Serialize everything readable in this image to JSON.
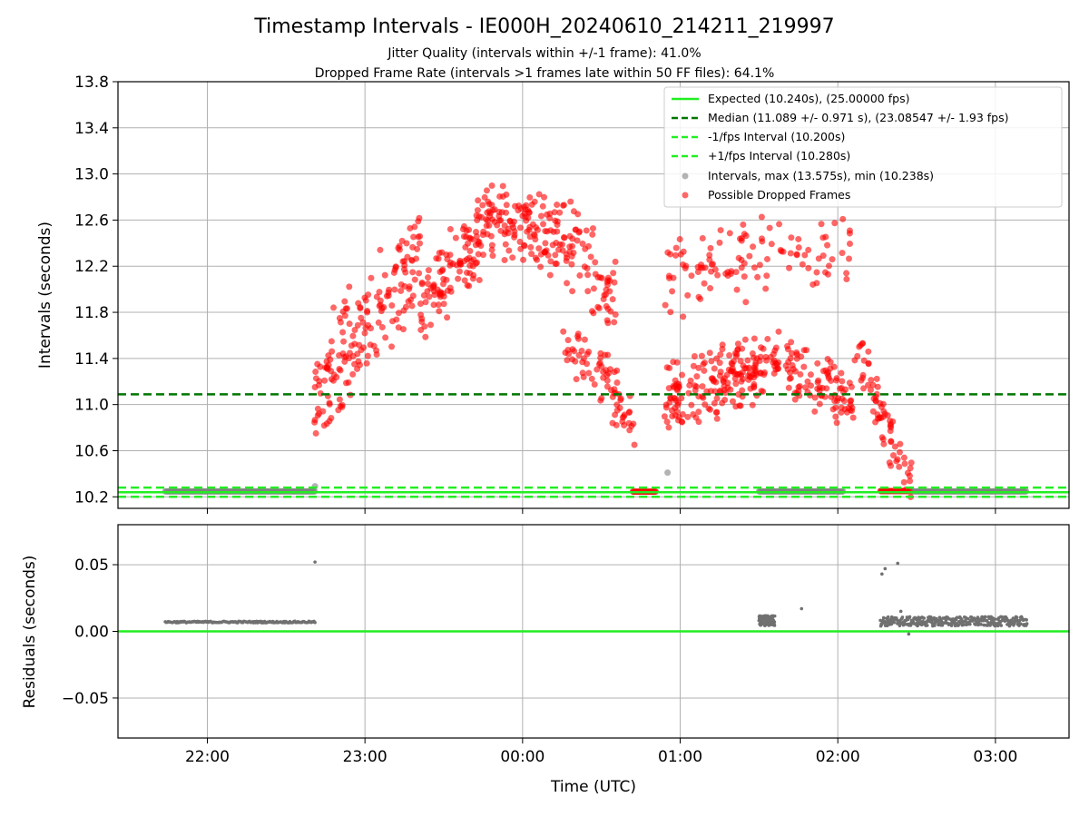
{
  "chart_data": {
    "title": "Timestamp Intervals - IE000H_20240610_214211_219997",
    "subtitle_lines": [
      "Jitter Quality (intervals within +/-1 frame): 41.0%",
      "Dropped Frame Rate (intervals >1 frames late within 50 FF files): 64.1%"
    ],
    "xlabel": "Time (UTC)",
    "x_ticks": [
      "22:00",
      "23:00",
      "00:00",
      "01:00",
      "02:00",
      "03:00"
    ],
    "x_range_hours": [
      21.433,
      27.467
    ],
    "panels": [
      {
        "id": "intervals",
        "type": "scatter",
        "ylabel": "Intervals (seconds)",
        "ylim": [
          10.1,
          13.8
        ],
        "y_ticks": [
          "10.2",
          "10.6",
          "11.0",
          "11.4",
          "11.8",
          "12.2",
          "12.6",
          "13.0",
          "13.4",
          "13.8"
        ],
        "grid": true,
        "legend_placement": "top-right",
        "reference_lines": [
          {
            "name": "Expected (10.240s), (25.00000 fps)",
            "value": 10.24,
            "style": "solid",
            "color": "#22ee22"
          },
          {
            "name": "Median (11.089 +/- 0.971 s), (23.08547 +/- 1.93 fps)",
            "value": 11.089,
            "style": "dashed",
            "color": "#007700"
          },
          {
            "name": "-1/fps Interval (10.200s)",
            "value": 10.2,
            "style": "dashed",
            "color": "#22ee22"
          },
          {
            "name": "+1/fps Interval (10.280s)",
            "value": 10.28,
            "style": "dashed",
            "color": "#22ee22"
          }
        ],
        "series": [
          {
            "name": "Intervals, max (13.575s), min (10.238s)",
            "color": "#808080",
            "segments": [
              {
                "x_start": 21.733,
                "x_end": 22.683,
                "y": 10.247
              },
              {
                "x_start": 25.5,
                "x_end": 26.033,
                "y": 10.247
              },
              {
                "x_start": 26.467,
                "x_end": 27.2,
                "y": 10.247
              }
            ],
            "outliers": [
              {
                "x": 22.683,
                "y": 10.292
              },
              {
                "x": 24.92,
                "y": 10.41
              }
            ]
          },
          {
            "name": "Possible Dropped Frames",
            "color": "#ff0000",
            "clusters": [
              {
                "x_range": [
                  22.68,
                  23.35
                ],
                "y_center": 11.7,
                "spread": 0.55,
                "n": 170,
                "trend": 1.2
              },
              {
                "x_range": [
                  23.35,
                  23.75
                ],
                "y_center": 12.15,
                "spread": 0.4,
                "n": 110,
                "trend": 0.6
              },
              {
                "x_range": [
                  23.75,
                  24.25
                ],
                "y_center": 12.55,
                "spread": 0.38,
                "n": 130,
                "trend": -0.2
              },
              {
                "x_range": [
                  24.25,
                  24.6
                ],
                "y_center": 12.2,
                "spread": 0.45,
                "n": 70,
                "trend": -0.6
              },
              {
                "x_range": [
                  24.25,
                  24.6
                ],
                "y_center": 11.35,
                "spread": 0.3,
                "n": 40,
                "trend": -0.3
              },
              {
                "x_range": [
                  24.5,
                  24.72
                ],
                "y_center": 11.0,
                "spread": 0.3,
                "n": 35,
                "trend": -0.6
              },
              {
                "x_range": [
                  24.9,
                  25.55
                ],
                "y_center": 11.2,
                "spread": 0.35,
                "n": 180,
                "trend": 0.3
              },
              {
                "x_range": [
                  24.9,
                  25.55
                ],
                "y_center": 12.2,
                "spread": 0.4,
                "n": 70,
                "trend": 0.2
              },
              {
                "x_range": [
                  25.55,
                  26.1
                ],
                "y_center": 11.2,
                "spread": 0.3,
                "n": 110,
                "trend": -0.4
              },
              {
                "x_range": [
                  25.55,
                  26.1
                ],
                "y_center": 12.3,
                "spread": 0.35,
                "n": 40,
                "trend": 0.0
              },
              {
                "x_range": [
                  26.1,
                  26.47
                ],
                "y_center": 10.9,
                "spread": 0.3,
                "n": 70,
                "trend": -1.2
              }
            ],
            "fixed_segments": [
              {
                "x_start": 24.7,
                "x_end": 24.85,
                "y": 10.245
              },
              {
                "x_start": 26.27,
                "x_end": 26.45,
                "y": 10.25
              }
            ]
          }
        ]
      },
      {
        "id": "residuals",
        "type": "scatter",
        "ylabel": "Residuals (seconds)",
        "ylim": [
          -0.08,
          0.08
        ],
        "y_ticks": [
          "−0.05",
          "0.00",
          "0.05"
        ],
        "y_tick_values": [
          -0.05,
          0.0,
          0.05
        ],
        "grid": true,
        "zero_line_color": "#22ee22",
        "series": [
          {
            "name": "Residuals",
            "color": "#707070",
            "groups": [
              {
                "x_range": [
                  21.733,
                  22.683
                ],
                "y": 0.007,
                "jitter": 0.0006,
                "n": 150
              },
              {
                "x_range": [
                  25.5,
                  25.6
                ],
                "y": 0.008,
                "jitter": 0.004,
                "n": 90
              },
              {
                "x_range": [
                  26.27,
                  27.2
                ],
                "y": 0.0075,
                "jitter": 0.0035,
                "n": 320
              }
            ],
            "outliers": [
              {
                "x": 22.683,
                "y": 0.052
              },
              {
                "x": 26.28,
                "y": 0.043
              },
              {
                "x": 26.3,
                "y": 0.047
              },
              {
                "x": 26.38,
                "y": 0.051
              },
              {
                "x": 25.77,
                "y": 0.017
              },
              {
                "x": 26.4,
                "y": 0.015
              },
              {
                "x": 26.45,
                "y": -0.002
              }
            ]
          }
        ]
      }
    ]
  }
}
